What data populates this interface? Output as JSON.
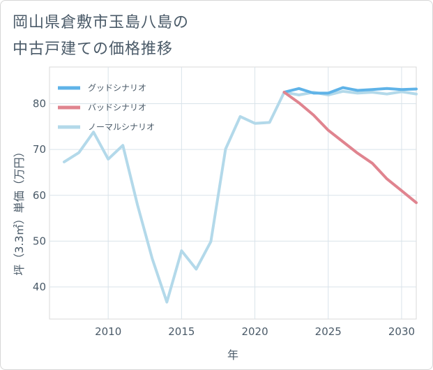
{
  "title_line1": "岡山県倉敷市玉島八島の",
  "title_line2": "中古戸建ての価格推移",
  "chart_data": {
    "type": "line",
    "xlabel": "年",
    "ylabel": "坪（3.3㎡）単価（万円）",
    "xlim": [
      2006,
      2031
    ],
    "ylim": [
      33,
      88
    ],
    "x_ticks": [
      2010,
      2015,
      2020,
      2025,
      2030
    ],
    "y_ticks": [
      40,
      50,
      60,
      70,
      80
    ],
    "grid": true,
    "legend_position": "top-left",
    "series": [
      {
        "name": "グッドシナリオ",
        "color": "#5fb3e8",
        "x": [
          2022,
          2023,
          2024,
          2025,
          2026,
          2027,
          2028,
          2029,
          2030,
          2031
        ],
        "y": [
          82.5,
          83.3,
          82.3,
          82.3,
          83.5,
          82.9,
          83.1,
          83.3,
          83.1,
          83.2
        ]
      },
      {
        "name": "バッドシナリオ",
        "color": "#e0848f",
        "x": [
          2022,
          2023,
          2024,
          2025,
          2026,
          2027,
          2028,
          2029,
          2030,
          2031
        ],
        "y": [
          82.5,
          80.2,
          77.5,
          74.2,
          71.7,
          69.2,
          67.0,
          63.6,
          61.0,
          58.4
        ]
      },
      {
        "name": "ノーマルシナリオ",
        "color": "#b3d9ea",
        "x": [
          2007,
          2008,
          2009,
          2010,
          2011,
          2012,
          2013,
          2014,
          2015,
          2016,
          2017,
          2018,
          2019,
          2020,
          2021,
          2022,
          2023,
          2024,
          2025,
          2026,
          2027,
          2028,
          2029,
          2030,
          2031
        ],
        "y": [
          67.3,
          69.3,
          73.8,
          67.9,
          70.9,
          57.9,
          46.2,
          36.7,
          47.9,
          43.9,
          49.9,
          70.1,
          77.2,
          75.7,
          75.9,
          82.5,
          81.9,
          82.5,
          81.9,
          82.7,
          82.3,
          82.5,
          82.1,
          82.6,
          82.1
        ]
      }
    ]
  }
}
